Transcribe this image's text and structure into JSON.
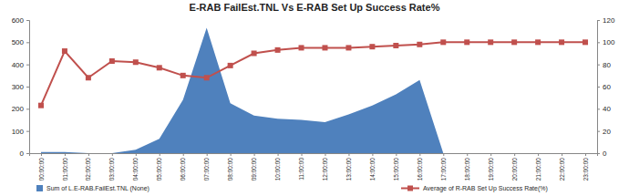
{
  "chart_data": {
    "type": "line",
    "title": "E-RAB FailEst.TNL Vs E-RAB Set Up Success Rate%",
    "categories": [
      "00:00:00",
      "01:00:00",
      "02:00:00",
      "03:00:00",
      "04:00:00",
      "05:00:00",
      "06:00:00",
      "07:00:00",
      "08:00:00",
      "09:00:00",
      "10:00:00",
      "11:00:00",
      "12:00:00",
      "13:00:00",
      "14:00:00",
      "15:00:00",
      "16:00:00",
      "17:00:00",
      "18:00:00",
      "19:00:00",
      "20:00:00",
      "21:00:00",
      "22:00:00",
      "23:00:00"
    ],
    "series": [
      {
        "name": "Sum of L.E-RAB.FailEst.TNL  (None)",
        "type": "area",
        "color": "#4f81bd",
        "values": [
          5,
          5,
          0,
          0,
          15,
          65,
          240,
          565,
          225,
          170,
          155,
          150,
          140,
          175,
          215,
          265,
          330,
          0,
          0,
          0,
          0,
          0,
          0,
          0
        ]
      },
      {
        "name": "Average of R-RAB Set Up Success Rate(%)",
        "type": "line",
        "axis": "y2",
        "color": "#c0504d",
        "marker": "square",
        "line_style": "solid",
        "values": [
          43,
          92,
          68,
          83,
          82,
          77,
          70,
          68,
          79,
          90,
          93,
          95,
          95,
          95,
          96,
          97,
          98,
          100,
          100,
          100,
          100,
          100,
          100,
          100
        ]
      }
    ],
    "ylim": [
      0,
      600
    ],
    "yticks": [
      0,
      100,
      200,
      300,
      400,
      500,
      600
    ],
    "y2lim": [
      0,
      120
    ],
    "y2ticks": [
      0,
      20,
      40,
      60,
      80,
      100,
      120
    ],
    "grid": false,
    "legend": "bottom"
  }
}
